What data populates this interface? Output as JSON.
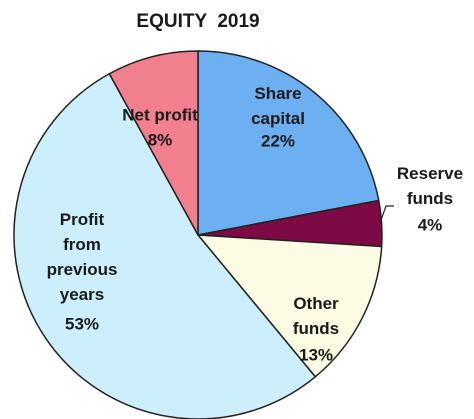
{
  "chart_data": {
    "type": "pie",
    "title": "EQUITY  2019",
    "categories": [
      "Share\ncapital",
      "Reserve\nfunds",
      "Other\nfunds",
      "Profit\nfrom\nprevious\nyears",
      "Net profit"
    ],
    "values": [
      22,
      4,
      13,
      53,
      8
    ],
    "value_labels": [
      "22%",
      "4%",
      "13%",
      "53%",
      "8%"
    ],
    "colors": [
      "#6db0f2",
      "#7d0a45",
      "#fcfbe4",
      "#cdeffb",
      "#f27f8e"
    ]
  }
}
